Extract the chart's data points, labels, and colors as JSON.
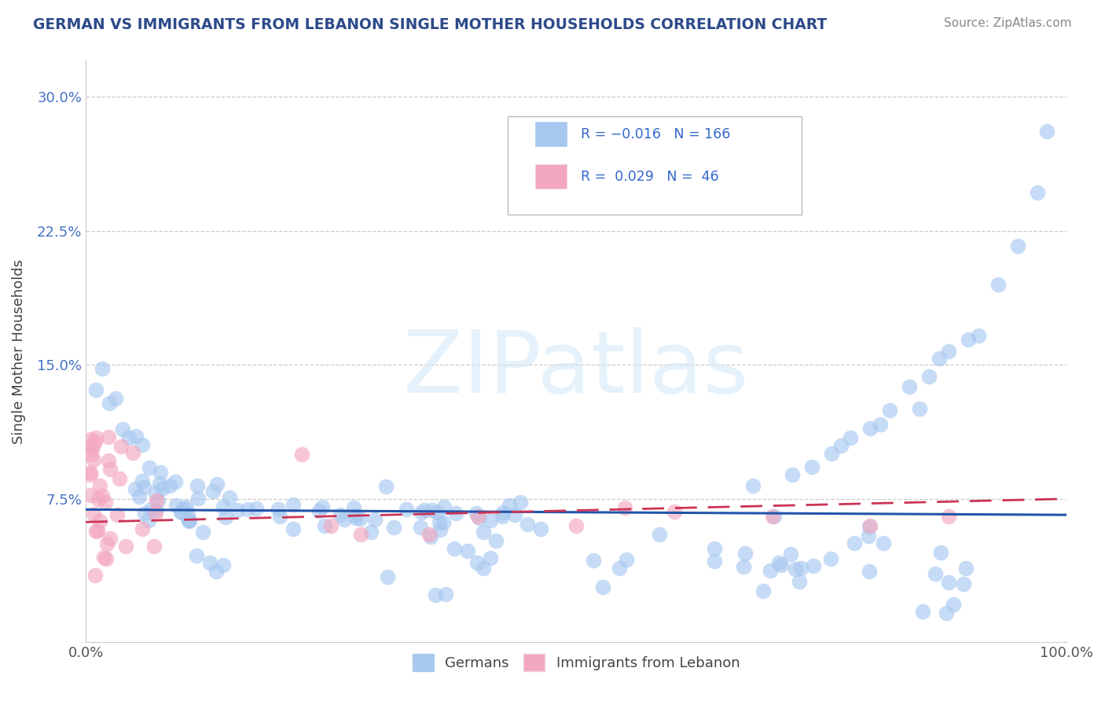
{
  "title": "GERMAN VS IMMIGRANTS FROM LEBANON SINGLE MOTHER HOUSEHOLDS CORRELATION CHART",
  "source": "Source: ZipAtlas.com",
  "ylabel": "Single Mother Households",
  "watermark": "ZIPatlas",
  "legend_blue_r": "-0.016",
  "legend_blue_n": "166",
  "legend_pink_r": "0.029",
  "legend_pink_n": "46",
  "legend_label_blue": "Germans",
  "legend_label_pink": "Immigrants from Lebanon",
  "xlim": [
    0.0,
    1.0
  ],
  "ylim": [
    -0.005,
    0.32
  ],
  "yticks": [
    0.075,
    0.15,
    0.225,
    0.3
  ],
  "ytick_labels": [
    "7.5%",
    "15.0%",
    "22.5%",
    "30.0%"
  ],
  "xticks": [
    0.0,
    1.0
  ],
  "xtick_labels": [
    "0.0%",
    "100.0%"
  ],
  "blue_color": "#A8C8F0",
  "pink_color": "#F4A8C0",
  "blue_line_color": "#2255AA",
  "pink_line_color": "#CC3355",
  "title_color": "#2D4A8A",
  "grid_color": "#CCCCCC",
  "background_color": "#FFFFFF"
}
